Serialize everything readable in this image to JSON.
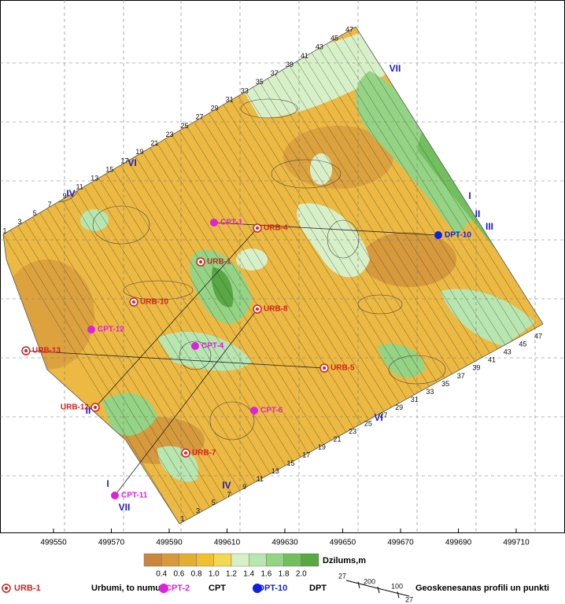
{
  "x_axis_labels": [
    "499550",
    "499570",
    "499590",
    "499610",
    "499630",
    "499650",
    "499670",
    "499690",
    "499710"
  ],
  "profile_numbers": {
    "north_west": [
      "1",
      "3",
      "5",
      "7",
      "9",
      "11",
      "13",
      "15",
      "17",
      "19",
      "21",
      "23",
      "25",
      "27",
      "29",
      "31",
      "33",
      "35",
      "37",
      "39",
      "41",
      "43",
      "45",
      "47"
    ],
    "south_east": [
      "1",
      "3",
      "5",
      "7",
      "9",
      "11",
      "13",
      "15",
      "17",
      "19",
      "21",
      "23",
      "25",
      "27",
      "29",
      "31",
      "33",
      "35",
      "37",
      "39",
      "41",
      "43",
      "45",
      "47"
    ]
  },
  "profile_labels": [
    "VII",
    "VI",
    "IV",
    "I",
    "II",
    "III",
    "II",
    "VI",
    "IV",
    "I",
    "VII"
  ],
  "points": [
    "CPT-1",
    "URB-4",
    "URB-1",
    "DPT-10",
    "URB-10",
    "URB-8",
    "CPT-12",
    "CPT-4",
    "URB-13",
    "URB-5",
    "URB-12",
    "CPT-6",
    "URB-7",
    "CPT-11"
  ],
  "colorbar": {
    "title": "Dzilums,m",
    "ticks": [
      "0.4",
      "0.6",
      "0.8",
      "1.0",
      "1.2",
      "1.4",
      "1.6",
      "1.8",
      "2.0"
    ],
    "colors": [
      "#c8873c",
      "#d69a3c",
      "#e4ad34",
      "#f0c030",
      "#f4d850",
      "#d8f0c8",
      "#b8e6b0",
      "#94d484",
      "#72bf5e",
      "#58a844"
    ]
  },
  "legend": [
    {
      "symbol_label": "URB-1",
      "text": "Urbumi, to numuri",
      "color": "#d42020"
    },
    {
      "symbol_label": "CPT-2",
      "text": "CPT",
      "color": "#e020e0"
    },
    {
      "symbol_label": "DPT-10",
      "text": "DPT",
      "color": "#1020e0"
    }
  ],
  "profile_legend": {
    "numbers": [
      "27",
      "200",
      "100",
      "27"
    ],
    "text": "Geoskenesanas profili un punkti"
  }
}
